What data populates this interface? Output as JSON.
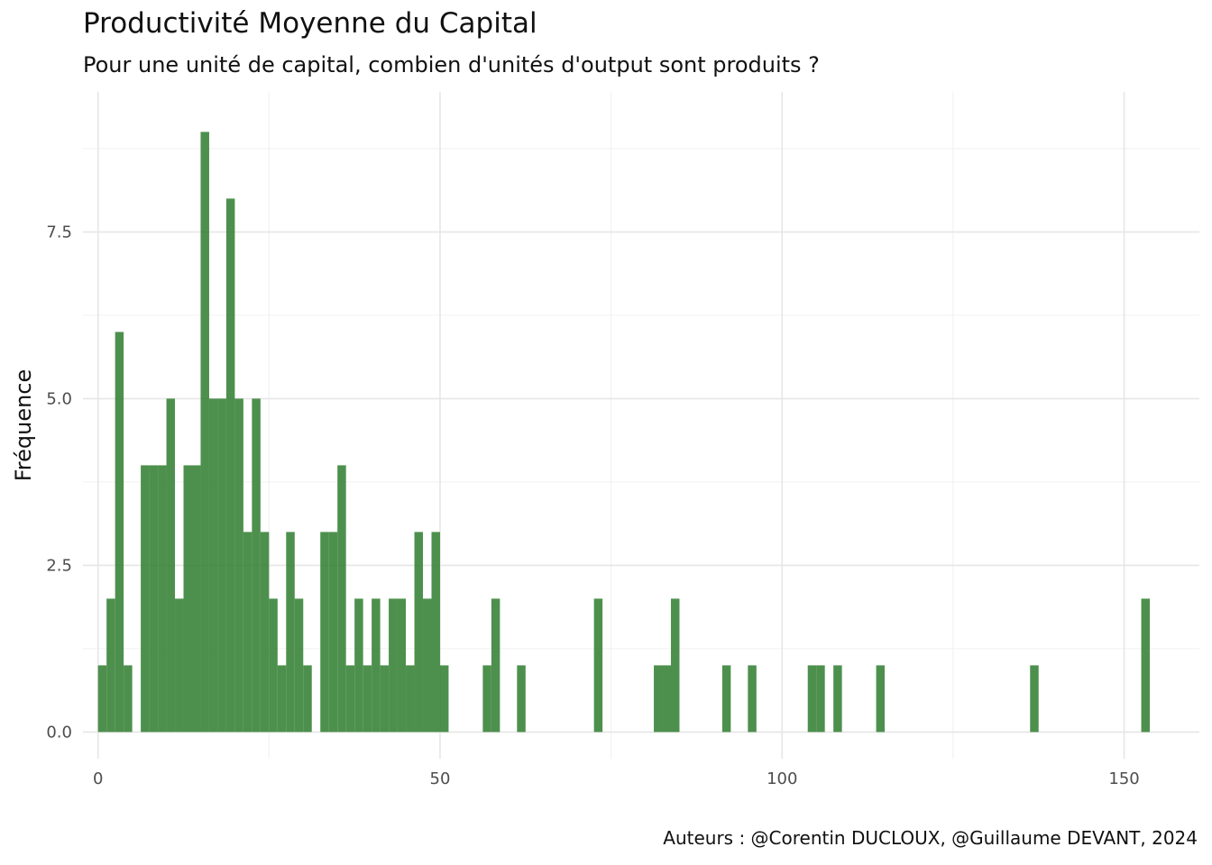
{
  "chart_data": {
    "type": "bar",
    "title": "Productivité Moyenne du Capital",
    "subtitle": "Pour une unité de capital, combien d'unités d'output sont produits ?",
    "caption": "Auteurs : @Corentin DUCLOUX, @Guillaume DEVANT, 2024",
    "xlabel": "",
    "ylabel": "Fréquence",
    "xlim": [
      -2.2,
      161
    ],
    "ylim": [
      -0.4,
      9.6
    ],
    "x_ticks": [
      0,
      50,
      100,
      150
    ],
    "x_tick_labels": [
      "0",
      "50",
      "100",
      "150"
    ],
    "y_ticks": [
      0,
      2.5,
      5,
      7.5
    ],
    "y_tick_labels": [
      "0.0",
      "2.5",
      "5.0",
      "7.5"
    ],
    "grid": true,
    "bar_color": "#2e7d2e",
    "bin_width": 1.25,
    "bins": [
      {
        "x": 0.625,
        "count": 1
      },
      {
        "x": 1.875,
        "count": 2
      },
      {
        "x": 3.125,
        "count": 6
      },
      {
        "x": 4.375,
        "count": 1
      },
      {
        "x": 5.625,
        "count": 0
      },
      {
        "x": 6.875,
        "count": 4
      },
      {
        "x": 8.125,
        "count": 4
      },
      {
        "x": 9.375,
        "count": 4
      },
      {
        "x": 10.625,
        "count": 5
      },
      {
        "x": 11.875,
        "count": 2
      },
      {
        "x": 13.125,
        "count": 4
      },
      {
        "x": 14.375,
        "count": 4
      },
      {
        "x": 15.625,
        "count": 9
      },
      {
        "x": 16.875,
        "count": 5
      },
      {
        "x": 18.125,
        "count": 5
      },
      {
        "x": 19.375,
        "count": 8
      },
      {
        "x": 20.625,
        "count": 5
      },
      {
        "x": 21.875,
        "count": 3
      },
      {
        "x": 23.125,
        "count": 5
      },
      {
        "x": 24.375,
        "count": 3
      },
      {
        "x": 25.625,
        "count": 2
      },
      {
        "x": 26.875,
        "count": 1
      },
      {
        "x": 28.125,
        "count": 3
      },
      {
        "x": 29.375,
        "count": 2
      },
      {
        "x": 30.625,
        "count": 1
      },
      {
        "x": 31.875,
        "count": 0
      },
      {
        "x": 33.125,
        "count": 3
      },
      {
        "x": 34.375,
        "count": 3
      },
      {
        "x": 35.625,
        "count": 4
      },
      {
        "x": 36.875,
        "count": 1
      },
      {
        "x": 38.125,
        "count": 2
      },
      {
        "x": 39.375,
        "count": 1
      },
      {
        "x": 40.625,
        "count": 2
      },
      {
        "x": 41.875,
        "count": 1
      },
      {
        "x": 43.125,
        "count": 2
      },
      {
        "x": 44.375,
        "count": 2
      },
      {
        "x": 45.625,
        "count": 1
      },
      {
        "x": 46.875,
        "count": 3
      },
      {
        "x": 48.125,
        "count": 2
      },
      {
        "x": 49.375,
        "count": 3
      },
      {
        "x": 50.625,
        "count": 1
      },
      {
        "x": 56.875,
        "count": 1
      },
      {
        "x": 58.125,
        "count": 2
      },
      {
        "x": 61.875,
        "count": 1
      },
      {
        "x": 73.125,
        "count": 2
      },
      {
        "x": 81.875,
        "count": 1
      },
      {
        "x": 83.125,
        "count": 1
      },
      {
        "x": 84.375,
        "count": 2
      },
      {
        "x": 91.875,
        "count": 1
      },
      {
        "x": 95.625,
        "count": 1
      },
      {
        "x": 104.375,
        "count": 1
      },
      {
        "x": 105.625,
        "count": 1
      },
      {
        "x": 108.125,
        "count": 1
      },
      {
        "x": 114.375,
        "count": 1
      },
      {
        "x": 136.875,
        "count": 1
      },
      {
        "x": 153.125,
        "count": 2
      }
    ]
  }
}
